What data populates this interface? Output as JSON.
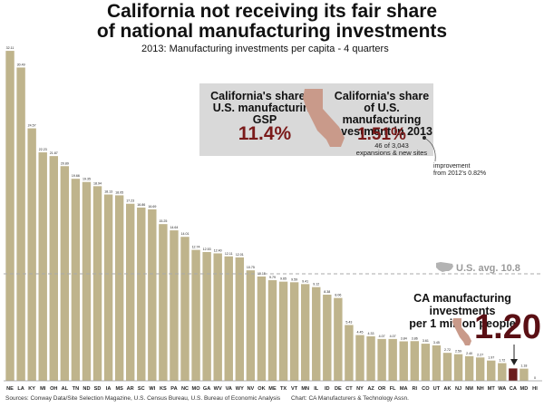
{
  "header": {
    "title_line1": "California not receiving its fair share",
    "title_line2": "of national manufacturing investments",
    "subtitle": "2013: Manufacturing investments per capita - 4 quarters"
  },
  "callouts": {
    "gsp": {
      "label": "California's share of U.S. manufacturing GSP",
      "value": "11.4%"
    },
    "investment": {
      "label": "California's share of U.S. manufacturing investment in 2013",
      "value": "1.51%",
      "detail_line1": "46 of 3,043",
      "detail_line2": "expansions & new sites"
    },
    "improvement_line1": "improvement",
    "improvement_line2": "from 2012's 0.82%",
    "avg_label": "U.S. avg. 10.8",
    "ca_title_line1": "CA manufacturing investments",
    "ca_title_line2": "per 1 million people",
    "ca_value": "1.20"
  },
  "footer": {
    "sources": "Sources: Conway Data/Site Selection Magazine, U.S. Census Bureau, U.S. Bureau of Economic Analysis",
    "credit": "Chart: CA Manufacturers & Technology Assn."
  },
  "colors": {
    "bar": "#bfb48c",
    "highlight": "#6b1c1c",
    "box": "#d9d9d9",
    "map": "#c99a8a"
  },
  "chart_data": {
    "type": "bar",
    "title": "2013: Manufacturing investments per capita - 4 quarters",
    "categories": [
      "NE",
      "LA",
      "KY",
      "MI",
      "OH",
      "AL",
      "TN",
      "ND",
      "SD",
      "IA",
      "MS",
      "AR",
      "SC",
      "WI",
      "KS",
      "PA",
      "NC",
      "MO",
      "GA",
      "WV",
      "VA",
      "WY",
      "NV",
      "OK",
      "ME",
      "TX",
      "VT",
      "MN",
      "IL",
      "ID",
      "DE",
      "CT",
      "NY",
      "AZ",
      "OR",
      "FL",
      "MA",
      "RI",
      "CO",
      "UT",
      "AK",
      "NJ",
      "NM",
      "NH",
      "MT",
      "WA",
      "CA",
      "MD",
      "HI"
    ],
    "values": [
      32.11,
      30.49,
      24.57,
      22.23,
      21.87,
      20.89,
      19.66,
      19.35,
      18.94,
      18.13,
      18.05,
      17.23,
      16.86,
      16.69,
      15.25,
      14.64,
      14.01,
      12.74,
      12.53,
      12.4,
      12.11,
      12.01,
      10.75,
      10.15,
      9.79,
      9.65,
      9.59,
      9.41,
      9.12,
      8.38,
      8.06,
      5.43,
      4.45,
      4.33,
      4.07,
      4.07,
      3.84,
      3.86,
      3.61,
      3.45,
      2.72,
      2.59,
      2.4,
      2.27,
      1.97,
      1.72,
      1.2,
      1.18,
      0
    ],
    "value_labels": [
      "32.11",
      "30.49",
      "24.57",
      "22.23",
      "21.87",
      "20.89",
      "19.66",
      "19.35",
      "18.94",
      "18.13",
      "18.05",
      "17.23",
      "16.86",
      "16.69",
      "15.25",
      "14.64",
      "14.01",
      "12.74",
      "12.53",
      "12.40",
      "12.11",
      "12.01",
      "10.75",
      "10.15",
      "9.79",
      "9.65",
      "9.59",
      "9.41",
      "9.12",
      "8.38",
      "8.06",
      "5.43",
      "4.45",
      "4.33",
      "4.07",
      "4.07",
      "3.84",
      "3.86",
      "3.61",
      "3.45",
      "2.72",
      "2.59",
      "2.40",
      "2.27",
      "1.97",
      "1.72",
      "",
      "1.18",
      "0"
    ],
    "highlight": "CA",
    "reference_line": {
      "value": 10.8,
      "label": "U.S. avg. 10.8"
    },
    "ylim": [
      0,
      33
    ],
    "grid": false
  }
}
